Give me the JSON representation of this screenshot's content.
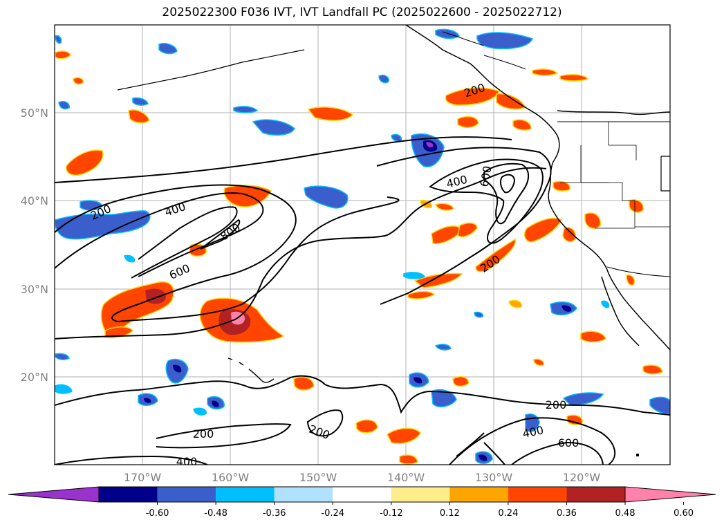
{
  "title": "2025022300 F036 IVT, IVT Landfall PC (2025022600 - 2025022712)",
  "map": {
    "projection": "PlateCarree",
    "extent": {
      "lon_min": -180,
      "lon_max": -110,
      "lat_min": 10,
      "lat_max": 60
    },
    "lat_labels": [
      "20°N",
      "30°N",
      "40°N",
      "50°N"
    ],
    "lon_labels": [
      "170°W",
      "160°W",
      "150°W",
      "140°W",
      "130°W",
      "120°W"
    ],
    "ivt_contour_labels": [
      "200",
      "400",
      "800",
      "600",
      "400",
      "600",
      "200",
      "200",
      "200",
      "400",
      "600",
      "400",
      "200"
    ],
    "colors": {
      "contour": "#000000",
      "coast": "#000000",
      "grid": "#b0b0b0",
      "frame": "#000000"
    }
  },
  "colorbar": {
    "ticks": [
      "-0.60",
      "-0.48",
      "-0.36",
      "-0.24",
      "-0.12",
      "0.12",
      "0.24",
      "0.36",
      "0.48",
      "0.60"
    ],
    "colors": [
      "#9a32cd",
      "#00008b",
      "#3a5fcd",
      "#00bfff",
      "#b0e2ff",
      "#ffffff",
      "#ffec8b",
      "#ffa500",
      "#ff4500",
      "#b22222",
      "#ff82ab"
    ],
    "extend": "both"
  }
}
